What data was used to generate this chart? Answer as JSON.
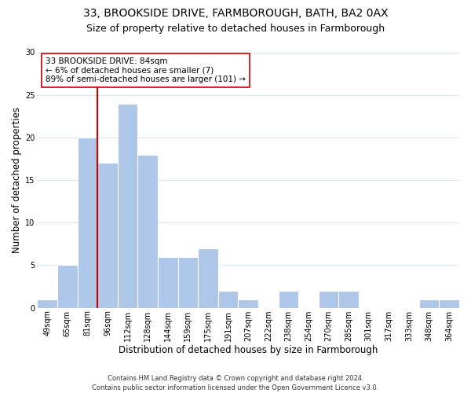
{
  "title": "33, BROOKSIDE DRIVE, FARMBOROUGH, BATH, BA2 0AX",
  "subtitle": "Size of property relative to detached houses in Farmborough",
  "xlabel": "Distribution of detached houses by size in Farmborough",
  "ylabel": "Number of detached properties",
  "bar_labels": [
    "49sqm",
    "65sqm",
    "81sqm",
    "96sqm",
    "112sqm",
    "128sqm",
    "144sqm",
    "159sqm",
    "175sqm",
    "191sqm",
    "207sqm",
    "222sqm",
    "238sqm",
    "254sqm",
    "270sqm",
    "285sqm",
    "301sqm",
    "317sqm",
    "333sqm",
    "348sqm",
    "364sqm"
  ],
  "bar_values": [
    1,
    5,
    20,
    17,
    24,
    18,
    6,
    6,
    7,
    2,
    1,
    0,
    2,
    0,
    2,
    2,
    0,
    0,
    0,
    1,
    1
  ],
  "bar_color": "#aec6e8",
  "bar_edge_color": "#aec6e8",
  "vline_index": 2,
  "vline_color": "#cc0000",
  "annotation_line1": "33 BROOKSIDE DRIVE: 84sqm",
  "annotation_line2": "← 6% of detached houses are smaller (7)",
  "annotation_line3": "89% of semi-detached houses are larger (101) →",
  "annotation_box_edgecolor": "#cc0000",
  "annotation_box_facecolor": "#ffffff",
  "ylim": [
    0,
    30
  ],
  "yticks": [
    0,
    5,
    10,
    15,
    20,
    25,
    30
  ],
  "footer_line1": "Contains HM Land Registry data © Crown copyright and database right 2024.",
  "footer_line2": "Contains public sector information licensed under the Open Government Licence v3.0.",
  "background_color": "#ffffff",
  "grid_color": "#d8e4f0",
  "title_fontsize": 10,
  "subtitle_fontsize": 9,
  "axis_label_fontsize": 8.5,
  "tick_fontsize": 7,
  "annotation_fontsize": 7.5,
  "footer_fontsize": 6
}
